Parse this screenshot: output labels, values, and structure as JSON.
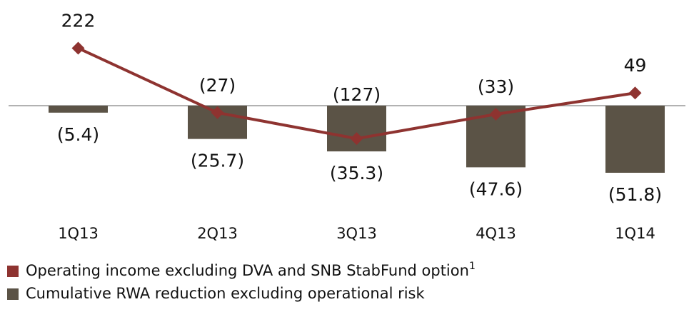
{
  "chart_data": {
    "type": "bar-line",
    "categories": [
      "1Q13",
      "2Q13",
      "3Q13",
      "4Q13",
      "1Q14"
    ],
    "series": [
      {
        "name": "Operating income excluding DVA and SNB StabFund option",
        "footnote": "1",
        "type": "line",
        "axis": "y2",
        "color": "#8e3330",
        "values": [
          222,
          -27,
          -127,
          -33,
          49
        ],
        "value_labels": [
          "222",
          "(27)",
          "(127)",
          "(33)",
          "49"
        ]
      },
      {
        "name": "Cumulative RWA reduction excluding operational risk",
        "type": "bar",
        "color": "#5b5346",
        "values": [
          -5.4,
          -25.7,
          -35.3,
          -47.6,
          -51.8
        ],
        "value_labels": [
          "(5.4)",
          "(25.7)",
          "(35.3)",
          "(47.6)",
          "(51.8)"
        ]
      }
    ],
    "ylim": [
      -70,
      70
    ],
    "y2lim": [
      -350,
      350
    ]
  }
}
